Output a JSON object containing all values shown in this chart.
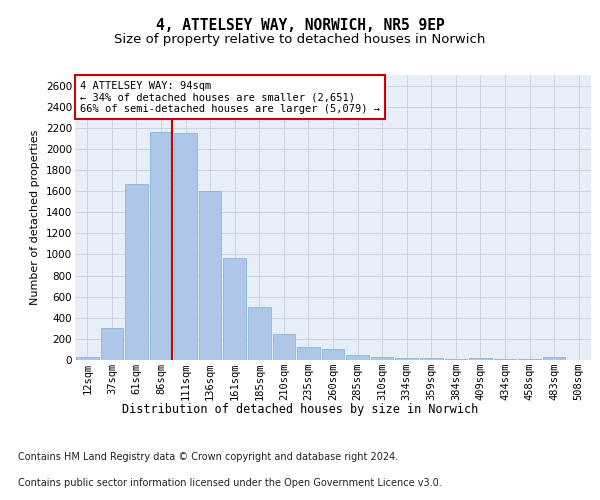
{
  "title": "4, ATTELSEY WAY, NORWICH, NR5 9EP",
  "subtitle": "Size of property relative to detached houses in Norwich",
  "xlabel": "Distribution of detached houses by size in Norwich",
  "ylabel": "Number of detached properties",
  "categories": [
    "12sqm",
    "37sqm",
    "61sqm",
    "86sqm",
    "111sqm",
    "136sqm",
    "161sqm",
    "185sqm",
    "210sqm",
    "235sqm",
    "260sqm",
    "285sqm",
    "310sqm",
    "334sqm",
    "359sqm",
    "384sqm",
    "409sqm",
    "434sqm",
    "458sqm",
    "483sqm",
    "508sqm"
  ],
  "values": [
    25,
    300,
    1670,
    2160,
    2150,
    1600,
    970,
    500,
    245,
    120,
    100,
    45,
    25,
    15,
    20,
    10,
    20,
    5,
    5,
    25,
    0
  ],
  "bar_color": "#aec6e8",
  "bar_edge_color": "#7bafd4",
  "vline_color": "#cc0000",
  "annotation_text": "4 ATTELSEY WAY: 94sqm\n← 34% of detached houses are smaller (2,651)\n66% of semi-detached houses are larger (5,079) →",
  "annotation_box_color": "#ffffff",
  "annotation_box_edge": "#cc0000",
  "ylim": [
    0,
    2700
  ],
  "yticks": [
    0,
    200,
    400,
    600,
    800,
    1000,
    1200,
    1400,
    1600,
    1800,
    2000,
    2200,
    2400,
    2600
  ],
  "grid_color": "#ccd4e0",
  "background_color": "#e8eef8",
  "footer_line1": "Contains HM Land Registry data © Crown copyright and database right 2024.",
  "footer_line2": "Contains public sector information licensed under the Open Government Licence v3.0.",
  "title_fontsize": 10.5,
  "subtitle_fontsize": 9.5,
  "ylabel_fontsize": 8,
  "xlabel_fontsize": 8.5,
  "tick_fontsize": 7.5,
  "annotation_fontsize": 7.5,
  "footer_fontsize": 7
}
